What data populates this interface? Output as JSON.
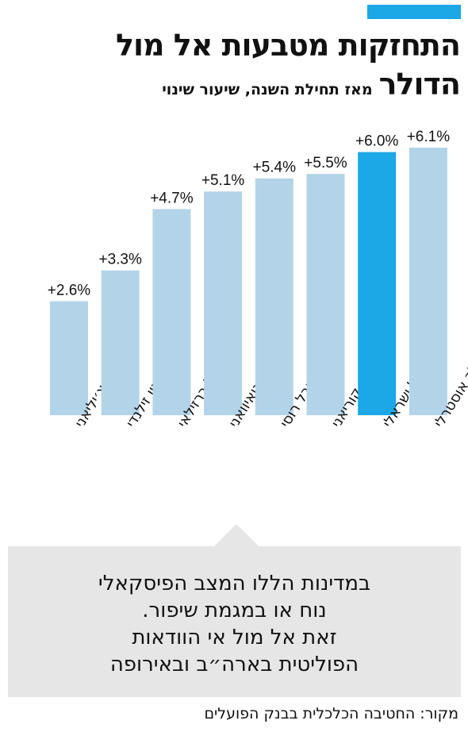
{
  "header": {
    "title_line1": "התחזקות מטבעות אל מול",
    "title_line2": "הדולר",
    "subtitle": "מאז תחילת השנה, שיעור שינוי"
  },
  "colors": {
    "accent": "#1ca7e6",
    "bar_default": "#b3d4e8",
    "bar_highlight": "#1ca7e6",
    "callout_bg": "#e6e6e6"
  },
  "chart_data": {
    "type": "bar",
    "categories": [
      "פסו צ׳יליאני",
      "דולר ניו זילנדי",
      "ריאל ברזילאי",
      "דולר טאיוואני",
      "רובל רוסי",
      "וון דרום קוריאני",
      "שקל ישראלי",
      "דולר אוסטרלי"
    ],
    "values": [
      2.6,
      3.3,
      4.7,
      5.1,
      5.4,
      5.5,
      6.0,
      6.1
    ],
    "value_labels": [
      "+2.6%",
      "+3.3%",
      "+4.7%",
      "+5.1%",
      "+5.4%",
      "+5.5%",
      "+6.0%",
      "+6.1%"
    ],
    "highlight_index": 6,
    "ylim": [
      0,
      6.5
    ],
    "grid": false,
    "legend": "none",
    "xlabel": "",
    "ylabel": ""
  },
  "callout": {
    "lines": [
      "במדינות הללו המצב הפיסקאלי",
      "נוח או במגמת שיפור.",
      "זאת אל מול אי הוודאות",
      "הפוליטית בארה״ב ובאירופה"
    ]
  },
  "source": "מקור: החטיבה הכלכלית בבנק הפועלים"
}
